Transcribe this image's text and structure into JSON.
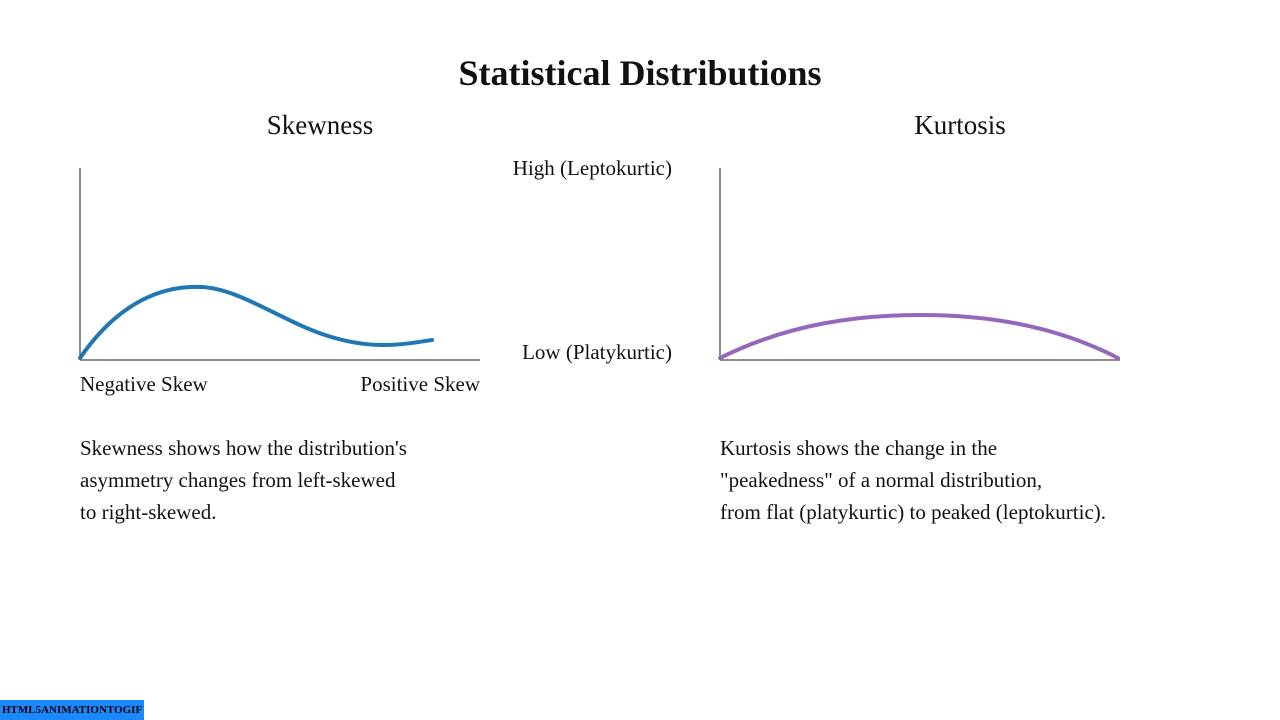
{
  "page_title": "Statistical Distributions",
  "chart_data": [
    {
      "type": "line",
      "title": "Skewness",
      "tick_labels": {
        "left": "Negative Skew",
        "right": "Positive Skew"
      },
      "color": "#1f77b4",
      "description": "Skewness shows how the distribution's\nasymmetry changes from left-skewed\nto right-skewed."
    },
    {
      "type": "line",
      "title": "Kurtosis",
      "y_labels": {
        "top": "High (Leptokurtic)",
        "bottom": "Low (Platykurtic)"
      },
      "color": "#9467bd",
      "description": "Kurtosis shows the change in the\n\"peakedness\" of a normal distribution,\nfrom flat (platykurtic) to peaked (leptokurtic)."
    }
  ],
  "watermark": "HTML5ANIMATIONTOGIF"
}
